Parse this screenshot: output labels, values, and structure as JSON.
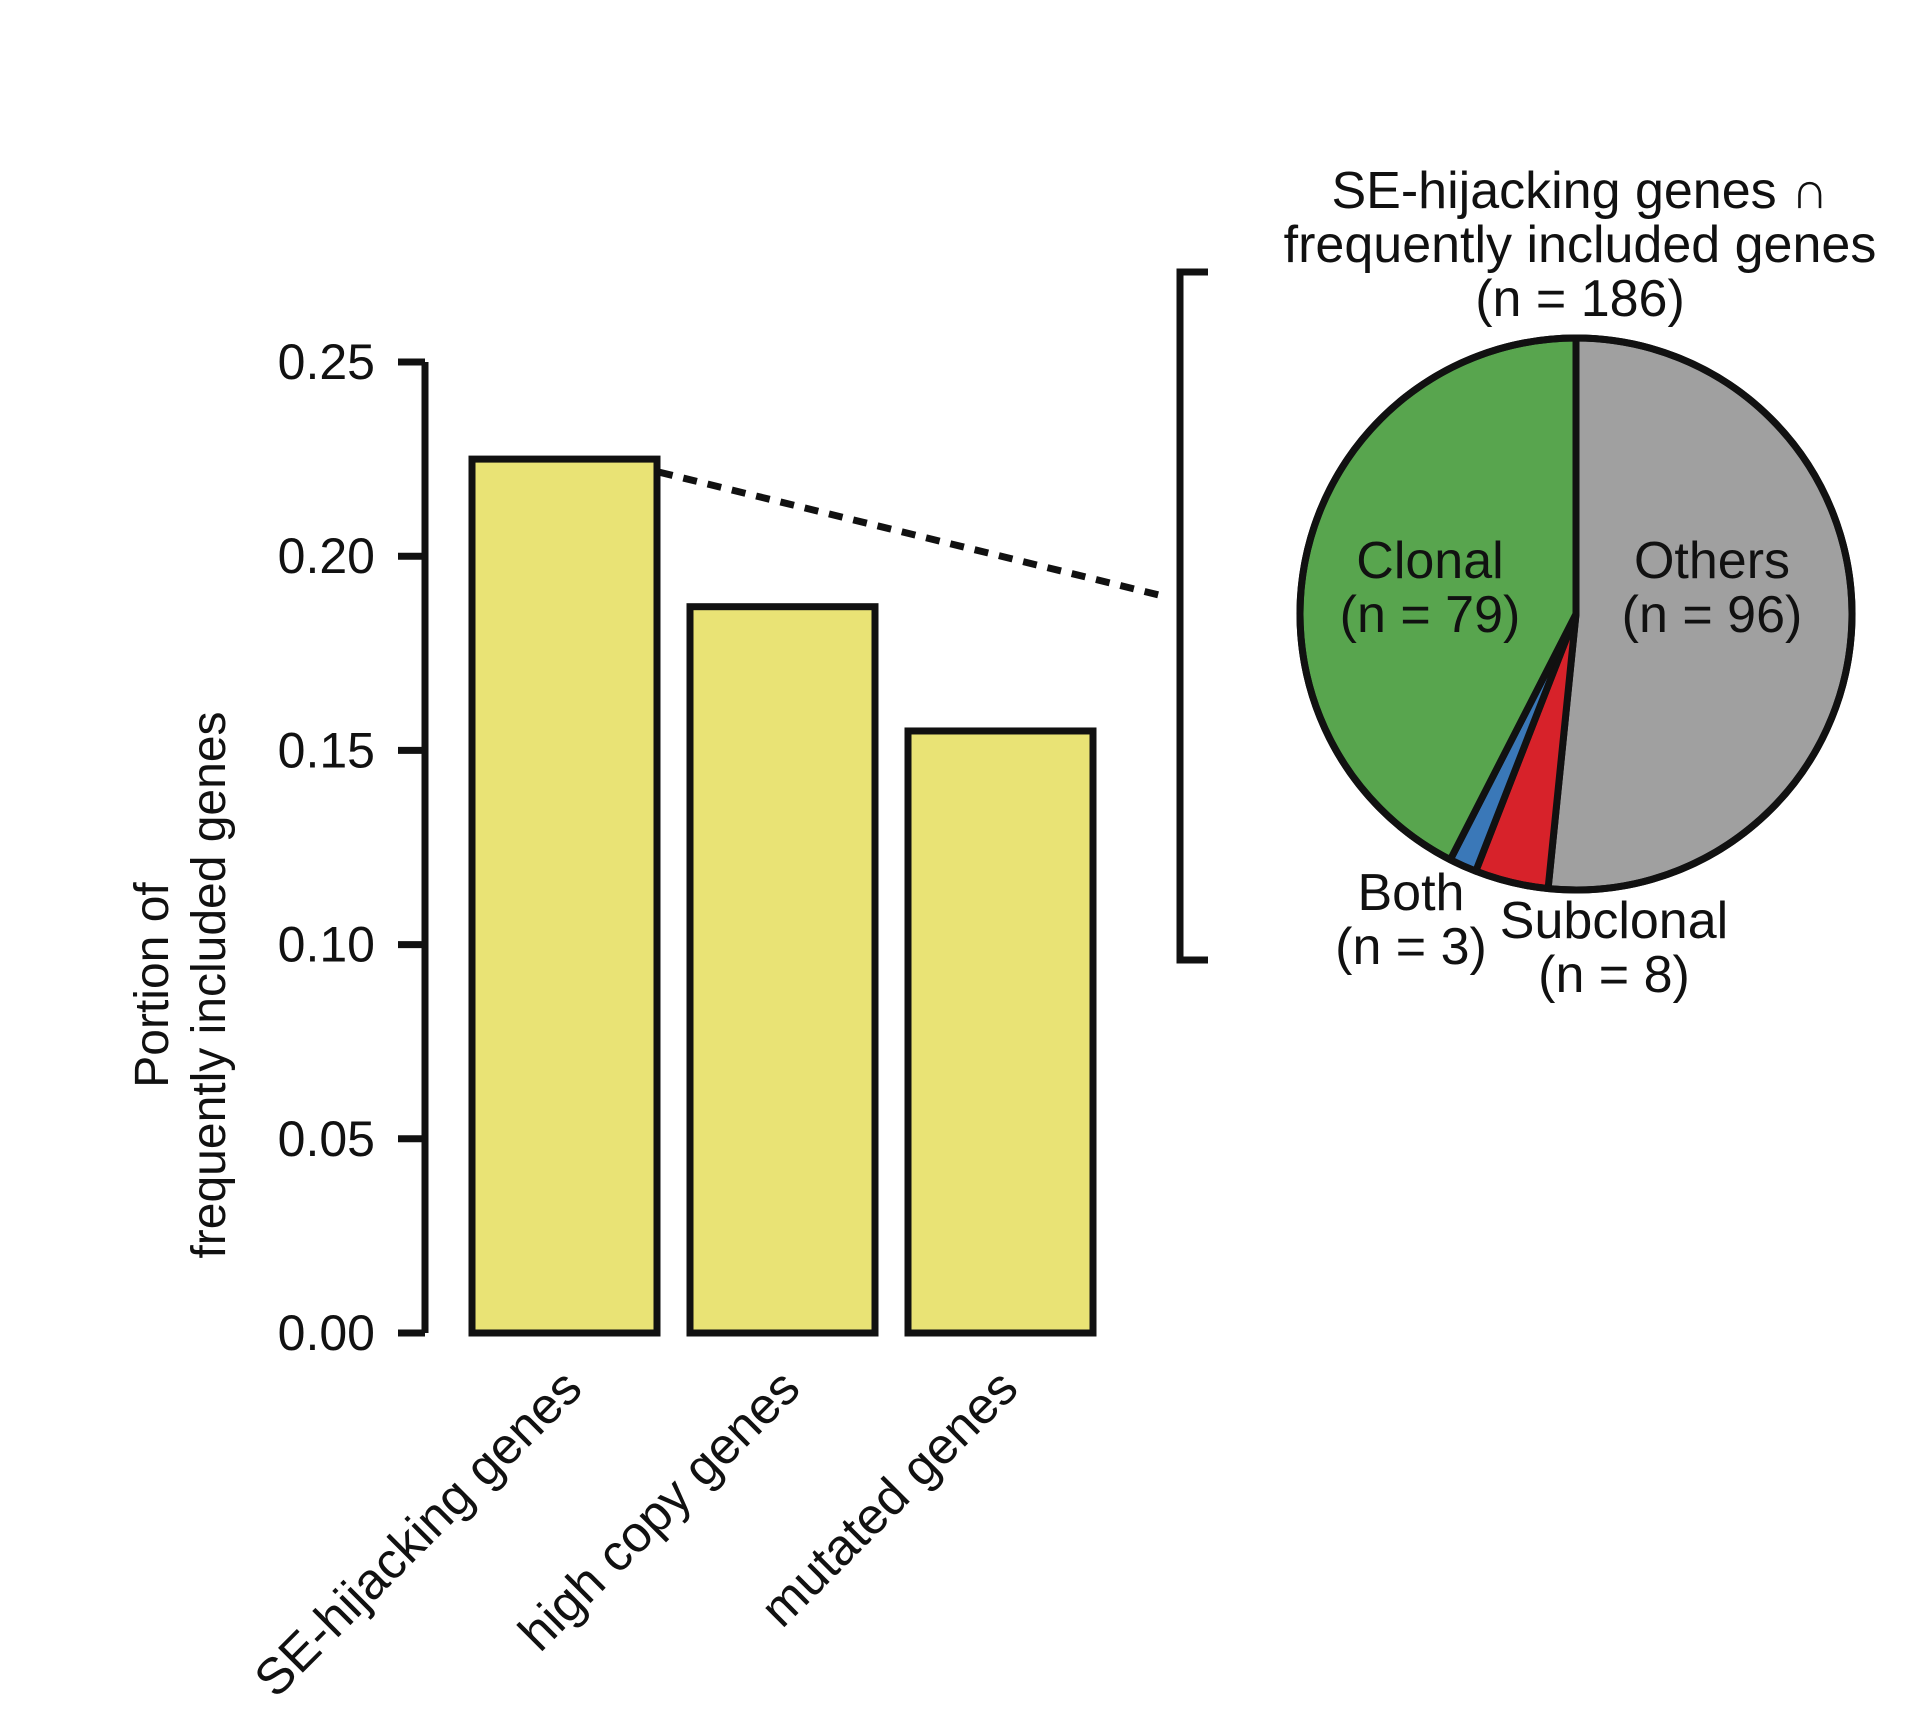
{
  "chart_data": [
    {
      "type": "bar",
      "categories": [
        "SE-hijacking genes",
        "high copy genes",
        "mutated genes"
      ],
      "values": [
        0.225,
        0.187,
        0.155
      ],
      "title": "",
      "xlabel": "",
      "ylabel_lines": [
        "Portion of",
        "frequently included genes"
      ],
      "ylim": [
        0,
        0.25
      ],
      "yticks": [
        0.0,
        0.05,
        0.1,
        0.15,
        0.2,
        0.25
      ],
      "ytick_labels": [
        "0.00",
        "0.05",
        "0.10",
        "0.15",
        "0.20",
        "0.25"
      ],
      "bar_color": "#E9E375",
      "grid": false,
      "legend": "none"
    },
    {
      "type": "pie",
      "title_lines": [
        "SE-hijacking genes ∩",
        "frequently included genes",
        "(n = 186)"
      ],
      "slices": [
        {
          "label": "Others",
          "count_label": "(n = 96)",
          "value": 96,
          "color": "#A0A0A0"
        },
        {
          "label": "Subclonal",
          "count_label": "(n = 8)",
          "value": 8,
          "color": "#D7222A"
        },
        {
          "label": "Both",
          "count_label": "(n = 3)",
          "value": 3,
          "color": "#3A78B8"
        },
        {
          "label": "Clonal",
          "count_label": "(n = 79)",
          "value": 79,
          "color": "#58A54E"
        }
      ],
      "start": "12 o'clock",
      "direction": "clockwise",
      "legend": "none"
    }
  ]
}
